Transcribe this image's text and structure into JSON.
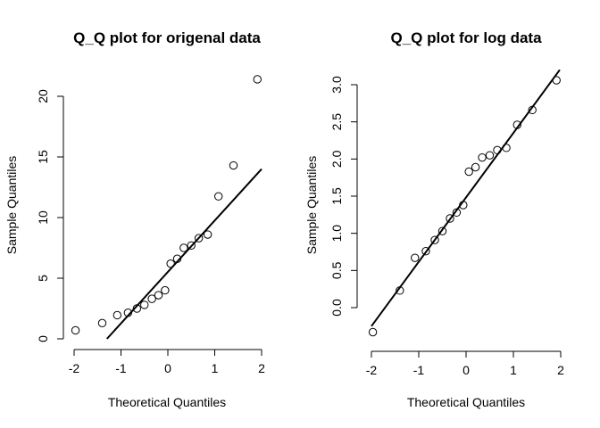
{
  "chart_data": [
    {
      "type": "scatter",
      "title": "Q_Q plot for origenal data",
      "xlabel": "Theoretical Quantiles",
      "ylabel": "Sample Quantiles",
      "xticks": [
        -2,
        -1,
        0,
        1,
        2
      ],
      "yticks": [
        0,
        5,
        10,
        15,
        20
      ],
      "xlim": [
        -2.1,
        2.1
      ],
      "ylim": [
        -0.2,
        22.2
      ],
      "points": [
        [
          -1.97,
          0.7
        ],
        [
          -1.4,
          1.3
        ],
        [
          -1.08,
          1.95
        ],
        [
          -0.85,
          2.15
        ],
        [
          -0.66,
          2.5
        ],
        [
          -0.5,
          2.8
        ],
        [
          -0.34,
          3.3
        ],
        [
          -0.2,
          3.6
        ],
        [
          -0.06,
          4.0
        ],
        [
          0.06,
          6.2
        ],
        [
          0.2,
          6.6
        ],
        [
          0.34,
          7.5
        ],
        [
          0.5,
          7.7
        ],
        [
          0.66,
          8.3
        ],
        [
          0.85,
          8.6
        ],
        [
          1.08,
          11.75
        ],
        [
          1.4,
          14.3
        ],
        [
          1.91,
          21.4
        ]
      ],
      "ref_line": [
        [
          -1.3,
          0
        ],
        [
          2.0,
          14.0
        ]
      ]
    },
    {
      "type": "scatter",
      "title": "Q_Q plot for log data",
      "xlabel": "Theoretical Quantiles",
      "ylabel": "Sample Quantiles",
      "xticks": [
        -2,
        -1,
        0,
        1,
        2
      ],
      "yticks": [
        0.0,
        0.5,
        1.0,
        1.5,
        2.0,
        2.5,
        3.0
      ],
      "ytick_labels": [
        "0.0",
        "0.5",
        "1.0",
        "1.5",
        "2.0",
        "2.5",
        "3.0"
      ],
      "xlim": [
        -2.1,
        2.1
      ],
      "ylim": [
        -0.5,
        3.25
      ],
      "points": [
        [
          -1.97,
          -0.33
        ],
        [
          -1.4,
          0.23
        ],
        [
          -1.08,
          0.67
        ],
        [
          -0.85,
          0.76
        ],
        [
          -0.66,
          0.91
        ],
        [
          -0.5,
          1.03
        ],
        [
          -0.34,
          1.2
        ],
        [
          -0.2,
          1.28
        ],
        [
          -0.06,
          1.38
        ],
        [
          0.06,
          1.83
        ],
        [
          0.2,
          1.89
        ],
        [
          0.34,
          2.02
        ],
        [
          0.5,
          2.05
        ],
        [
          0.66,
          2.12
        ],
        [
          0.85,
          2.15
        ],
        [
          1.08,
          2.46
        ],
        [
          1.4,
          2.66
        ],
        [
          1.91,
          3.06
        ]
      ],
      "ref_line": [
        [
          -2.0,
          -0.25
        ],
        [
          1.98,
          3.2
        ]
      ]
    }
  ]
}
